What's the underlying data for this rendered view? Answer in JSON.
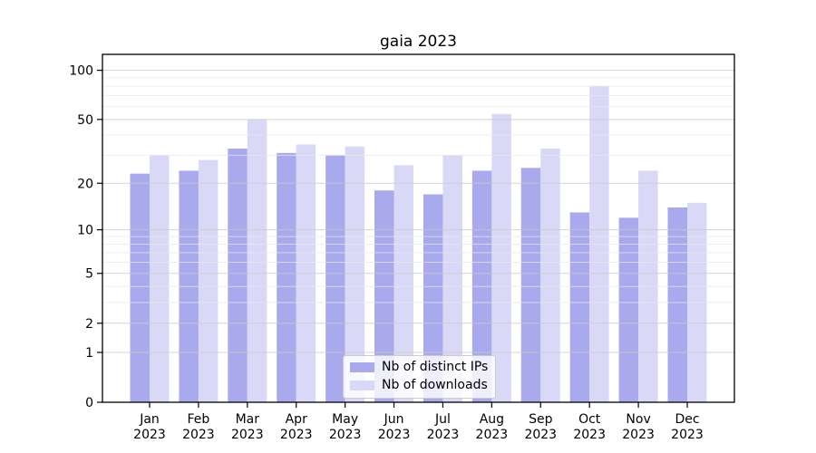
{
  "chart_data": {
    "type": "bar",
    "title": "gaia 2023",
    "categories": [
      "Jan",
      "Feb",
      "Mar",
      "Apr",
      "May",
      "Jun",
      "Jul",
      "Aug",
      "Sep",
      "Oct",
      "Nov",
      "Dec"
    ],
    "x_tick_year": "2023",
    "series": [
      {
        "name": "Nb of distinct IPs",
        "color": "#a9a9ed",
        "values": [
          23,
          24,
          33,
          31,
          30,
          18,
          17,
          24,
          25,
          13,
          12,
          14
        ]
      },
      {
        "name": "Nb of downloads",
        "color": "#d9d9f7",
        "values": [
          30,
          28,
          50,
          35,
          34,
          26,
          30,
          54,
          33,
          80,
          24,
          15
        ]
      }
    ],
    "yscale": "symlog log(1+v)",
    "y_ticks": [
      0,
      1,
      2,
      5,
      10,
      20,
      50,
      100
    ],
    "y_minor_gridlines": [
      3,
      4,
      6,
      7,
      8,
      9,
      30,
      40,
      60,
      70,
      80,
      90
    ],
    "ylim": [
      0,
      125
    ],
    "grid": true,
    "legend_position": "lower center",
    "colors": {
      "grid_major": "#c9c9c9",
      "grid_minor": "#e8e8e8",
      "axis": "#000000",
      "text": "#000000"
    }
  }
}
